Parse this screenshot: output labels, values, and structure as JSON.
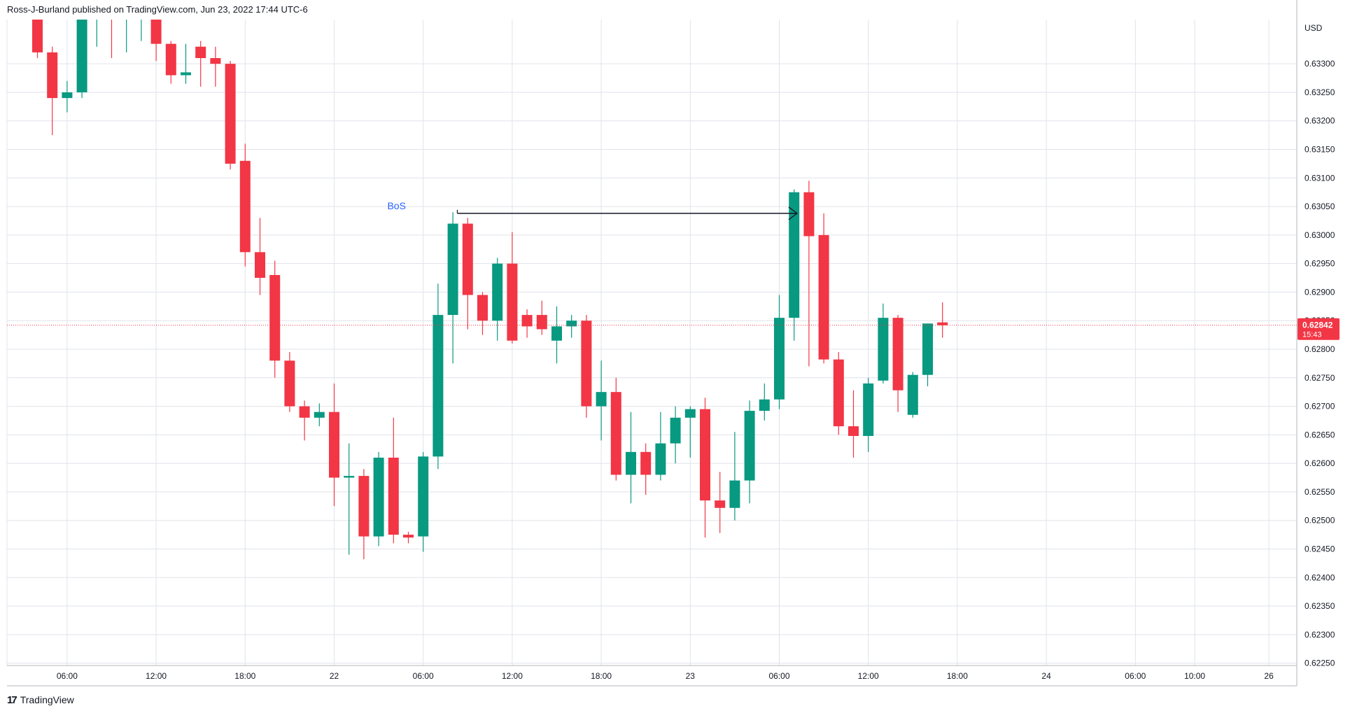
{
  "header": {
    "published_text": "Ross-J-Burland published on TradingView.com, Jun 23, 2022 17:44 UTC-6"
  },
  "footer": {
    "logo_mark": "17",
    "brand": "TradingView"
  },
  "colors": {
    "up": "#089981",
    "down": "#f23645",
    "grid": "#e0e3eb",
    "price_line": "#f23645",
    "annotation": "#2962ff",
    "arrow": "#131722"
  },
  "chart_data": {
    "type": "candlestick",
    "currency": "USD",
    "current_price": {
      "value": 0.62842,
      "label": "0.62842",
      "countdown": "15:43"
    },
    "ylim": [
      0.62225,
      0.63375
    ],
    "y_ticks": [
      "0.63300",
      "0.63250",
      "0.63200",
      "0.63150",
      "0.63100",
      "0.63050",
      "0.63000",
      "0.62950",
      "0.62900",
      "0.62850",
      "0.62800",
      "0.62750",
      "0.62700",
      "0.62650",
      "0.62600",
      "0.62550",
      "0.62500",
      "0.62450",
      "0.62400",
      "0.62350",
      "0.62300",
      "0.62250"
    ],
    "x_ticks": [
      {
        "label": "06:00",
        "t": 2
      },
      {
        "label": "12:00",
        "t": 8
      },
      {
        "label": "18:00",
        "t": 14
      },
      {
        "label": "22",
        "t": 20
      },
      {
        "label": "06:00",
        "t": 26
      },
      {
        "label": "12:00",
        "t": 32
      },
      {
        "label": "18:00",
        "t": 38
      },
      {
        "label": "23",
        "t": 44
      },
      {
        "label": "06:00",
        "t": 50
      },
      {
        "label": "12:00",
        "t": 56
      },
      {
        "label": "18:00",
        "t": 62
      },
      {
        "label": "24",
        "t": 68
      },
      {
        "label": "06:00",
        "t": 74
      },
      {
        "label": "10:00",
        "t": 78
      },
      {
        "label": "26",
        "t": 83
      }
    ],
    "candles": [
      {
        "t": 0,
        "o": 0.6339,
        "h": 0.634,
        "l": 0.6331,
        "c": 0.6332
      },
      {
        "t": 1,
        "o": 0.6332,
        "h": 0.6333,
        "l": 0.63175,
        "c": 0.6324
      },
      {
        "t": 2,
        "o": 0.6324,
        "h": 0.6327,
        "l": 0.63215,
        "c": 0.6325
      },
      {
        "t": 3,
        "o": 0.6325,
        "h": 0.634,
        "l": 0.6324,
        "c": 0.6339
      },
      {
        "t": 4,
        "o": 0.6339,
        "h": 0.634,
        "l": 0.6333,
        "c": 0.63395
      },
      {
        "t": 5,
        "o": 0.63395,
        "h": 0.634,
        "l": 0.6331,
        "c": 0.63385
      },
      {
        "t": 6,
        "o": 0.63385,
        "h": 0.634,
        "l": 0.6332,
        "c": 0.6339
      },
      {
        "t": 7,
        "o": 0.6339,
        "h": 0.634,
        "l": 0.6334,
        "c": 0.6339
      },
      {
        "t": 8,
        "o": 0.6338,
        "h": 0.6339,
        "l": 0.63305,
        "c": 0.63335
      },
      {
        "t": 9,
        "o": 0.63335,
        "h": 0.6334,
        "l": 0.63265,
        "c": 0.6328
      },
      {
        "t": 10,
        "o": 0.6328,
        "h": 0.63335,
        "l": 0.63265,
        "c": 0.63285
      },
      {
        "t": 11,
        "o": 0.6333,
        "h": 0.6334,
        "l": 0.6326,
        "c": 0.6331
      },
      {
        "t": 12,
        "o": 0.6331,
        "h": 0.6333,
        "l": 0.6326,
        "c": 0.633
      },
      {
        "t": 13,
        "o": 0.633,
        "h": 0.63305,
        "l": 0.63115,
        "c": 0.63125
      },
      {
        "t": 14,
        "o": 0.6313,
        "h": 0.6316,
        "l": 0.62945,
        "c": 0.6297
      },
      {
        "t": 15,
        "o": 0.6297,
        "h": 0.6303,
        "l": 0.62895,
        "c": 0.62925
      },
      {
        "t": 16,
        "o": 0.6293,
        "h": 0.62955,
        "l": 0.6275,
        "c": 0.6278
      },
      {
        "t": 17,
        "o": 0.6278,
        "h": 0.62795,
        "l": 0.6269,
        "c": 0.627
      },
      {
        "t": 18,
        "o": 0.627,
        "h": 0.6271,
        "l": 0.6264,
        "c": 0.6268
      },
      {
        "t": 19,
        "o": 0.6268,
        "h": 0.62705,
        "l": 0.62665,
        "c": 0.6269
      },
      {
        "t": 20,
        "o": 0.6269,
        "h": 0.6274,
        "l": 0.62525,
        "c": 0.62575
      },
      {
        "t": 21,
        "o": 0.62575,
        "h": 0.62635,
        "l": 0.6244,
        "c": 0.62578
      },
      {
        "t": 22,
        "o": 0.62578,
        "h": 0.6259,
        "l": 0.62432,
        "c": 0.62472
      },
      {
        "t": 23,
        "o": 0.62472,
        "h": 0.6262,
        "l": 0.62455,
        "c": 0.6261
      },
      {
        "t": 24,
        "o": 0.6261,
        "h": 0.6268,
        "l": 0.6246,
        "c": 0.62475
      },
      {
        "t": 25,
        "o": 0.62475,
        "h": 0.6248,
        "l": 0.6246,
        "c": 0.6247
      },
      {
        "t": 26,
        "o": 0.62472,
        "h": 0.6262,
        "l": 0.62445,
        "c": 0.62612
      },
      {
        "t": 27,
        "o": 0.62612,
        "h": 0.62915,
        "l": 0.6259,
        "c": 0.6286
      },
      {
        "t": 28,
        "o": 0.6286,
        "h": 0.6304,
        "l": 0.62775,
        "c": 0.6302
      },
      {
        "t": 29,
        "o": 0.6302,
        "h": 0.6303,
        "l": 0.62835,
        "c": 0.62895
      },
      {
        "t": 30,
        "o": 0.62895,
        "h": 0.629,
        "l": 0.62825,
        "c": 0.6285
      },
      {
        "t": 31,
        "o": 0.6285,
        "h": 0.6296,
        "l": 0.62815,
        "c": 0.6295
      },
      {
        "t": 32,
        "o": 0.6295,
        "h": 0.63005,
        "l": 0.6281,
        "c": 0.62815
      },
      {
        "t": 33,
        "o": 0.6286,
        "h": 0.6287,
        "l": 0.6282,
        "c": 0.6284
      },
      {
        "t": 34,
        "o": 0.6286,
        "h": 0.62885,
        "l": 0.62825,
        "c": 0.62835
      },
      {
        "t": 35,
        "o": 0.62815,
        "h": 0.62875,
        "l": 0.62775,
        "c": 0.6284
      },
      {
        "t": 36,
        "o": 0.6284,
        "h": 0.6286,
        "l": 0.6282,
        "c": 0.6285
      },
      {
        "t": 37,
        "o": 0.6285,
        "h": 0.6286,
        "l": 0.6268,
        "c": 0.627
      },
      {
        "t": 38,
        "o": 0.627,
        "h": 0.6278,
        "l": 0.6264,
        "c": 0.62725
      },
      {
        "t": 39,
        "o": 0.62725,
        "h": 0.6275,
        "l": 0.6257,
        "c": 0.6258
      },
      {
        "t": 40,
        "o": 0.6258,
        "h": 0.6269,
        "l": 0.6253,
        "c": 0.6262
      },
      {
        "t": 41,
        "o": 0.6262,
        "h": 0.62635,
        "l": 0.62545,
        "c": 0.6258
      },
      {
        "t": 42,
        "o": 0.6258,
        "h": 0.6269,
        "l": 0.6257,
        "c": 0.62635
      },
      {
        "t": 43,
        "o": 0.62635,
        "h": 0.627,
        "l": 0.626,
        "c": 0.6268
      },
      {
        "t": 44,
        "o": 0.6268,
        "h": 0.627,
        "l": 0.6261,
        "c": 0.62695
      },
      {
        "t": 45,
        "o": 0.62695,
        "h": 0.62715,
        "l": 0.6247,
        "c": 0.62535
      },
      {
        "t": 46,
        "o": 0.62535,
        "h": 0.62585,
        "l": 0.62478,
        "c": 0.62522
      },
      {
        "t": 47,
        "o": 0.62522,
        "h": 0.62655,
        "l": 0.625,
        "c": 0.6257
      },
      {
        "t": 48,
        "o": 0.6257,
        "h": 0.6271,
        "l": 0.6253,
        "c": 0.62692
      },
      {
        "t": 49,
        "o": 0.62692,
        "h": 0.6274,
        "l": 0.62675,
        "c": 0.62712
      },
      {
        "t": 50,
        "o": 0.62712,
        "h": 0.62895,
        "l": 0.62695,
        "c": 0.62855
      },
      {
        "t": 51,
        "o": 0.62855,
        "h": 0.6308,
        "l": 0.62815,
        "c": 0.63075
      },
      {
        "t": 52,
        "o": 0.63075,
        "h": 0.63095,
        "l": 0.6277,
        "c": 0.62998
      },
      {
        "t": 53,
        "o": 0.63,
        "h": 0.63038,
        "l": 0.62775,
        "c": 0.62782
      },
      {
        "t": 54,
        "o": 0.62782,
        "h": 0.62795,
        "l": 0.6265,
        "c": 0.62665
      },
      {
        "t": 55,
        "o": 0.62665,
        "h": 0.62728,
        "l": 0.6261,
        "c": 0.62648
      },
      {
        "t": 56,
        "o": 0.62648,
        "h": 0.6275,
        "l": 0.6262,
        "c": 0.6274
      },
      {
        "t": 57,
        "o": 0.62745,
        "h": 0.6288,
        "l": 0.6274,
        "c": 0.62855
      },
      {
        "t": 58,
        "o": 0.62855,
        "h": 0.6286,
        "l": 0.6269,
        "c": 0.62728
      },
      {
        "t": 59,
        "o": 0.62685,
        "h": 0.6276,
        "l": 0.6268,
        "c": 0.62755
      },
      {
        "t": 60,
        "o": 0.62755,
        "h": 0.62845,
        "l": 0.62735,
        "c": 0.62845
      },
      {
        "t": 61,
        "o": 0.62847,
        "h": 0.62882,
        "l": 0.6282,
        "c": 0.62842
      }
    ],
    "annotations": {
      "bos_label": "BoS",
      "bos_line": {
        "from_t": 28.3,
        "to_t": 51.2,
        "price": 0.63038
      }
    }
  }
}
